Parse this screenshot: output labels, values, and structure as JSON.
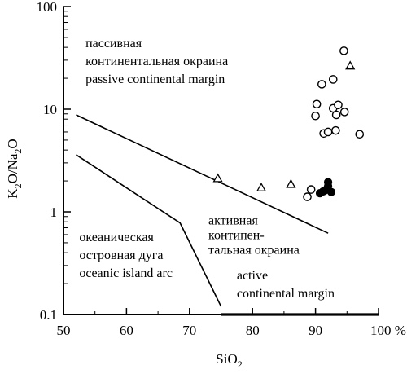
{
  "chart_data": {
    "type": "scatter",
    "title": "",
    "xlabel": "SiO",
    "xlabel_sub": "2",
    "ylabel_parts": [
      "K",
      "2",
      "O/Na",
      "2",
      "O"
    ],
    "x_scale": "linear",
    "y_scale": "log",
    "xlim": [
      50,
      100
    ],
    "ylim": [
      0.1,
      100
    ],
    "x_ticks": [
      50,
      60,
      70,
      80,
      90,
      100
    ],
    "x_tick_labels": [
      "50",
      "60",
      "70",
      "80",
      "90",
      "100 %"
    ],
    "y_ticks": [
      0.1,
      1,
      10,
      100
    ],
    "y_tick_labels": [
      "0.1",
      "1",
      "10",
      "100"
    ],
    "grid": false,
    "boundaries": [
      {
        "name": "upper",
        "points": [
          [
            52,
            8.8
          ],
          [
            92,
            0.62
          ]
        ]
      },
      {
        "name": "lower",
        "points": [
          [
            52,
            3.6
          ],
          [
            68.5,
            0.78
          ],
          [
            75,
            0.12
          ]
        ]
      }
    ],
    "regions": [
      {
        "lines": [
          "пассивная",
          "континентальная окраина",
          "passive continental margin"
        ],
        "x": 53.5,
        "y": 40
      },
      {
        "lines": [
          "океаническая",
          "островная дуга",
          "oceanic island arc"
        ],
        "x": 52.5,
        "y": 0.52
      },
      {
        "lines": [
          "активная",
          "контипен-",
          "тальная окраина"
        ],
        "x": 73,
        "y": 0.75
      },
      {
        "lines": [
          "active",
          "continental margin"
        ],
        "x": 77.5,
        "y": 0.22
      }
    ],
    "series": [
      {
        "marker": "open-circle",
        "points": [
          [
            94.5,
            37
          ],
          [
            92.8,
            19.5
          ],
          [
            91,
            17.5
          ],
          [
            90.2,
            11.2
          ],
          [
            90,
            8.6
          ],
          [
            92.8,
            10.2
          ],
          [
            93.6,
            11
          ],
          [
            93.3,
            8.8
          ],
          [
            94.6,
            9.4
          ],
          [
            91.3,
            5.8
          ],
          [
            92,
            6
          ],
          [
            93.2,
            6.2
          ],
          [
            97,
            5.7
          ],
          [
            88.7,
            1.4
          ],
          [
            89.3,
            1.65
          ]
        ]
      },
      {
        "marker": "open-triangle",
        "points": [
          [
            95.5,
            26.5
          ],
          [
            74.5,
            2.12
          ],
          [
            81.4,
            1.72
          ],
          [
            86.1,
            1.86
          ]
        ]
      },
      {
        "marker": "filled-circle",
        "points": [
          [
            92,
            1.95
          ],
          [
            92,
            1.78
          ],
          [
            91.5,
            1.62
          ],
          [
            92.5,
            1.56
          ],
          [
            90.7,
            1.52
          ],
          [
            91.2,
            1.58
          ]
        ]
      }
    ],
    "bottom_rule": {
      "from_x": 75,
      "to_x": 100
    }
  }
}
